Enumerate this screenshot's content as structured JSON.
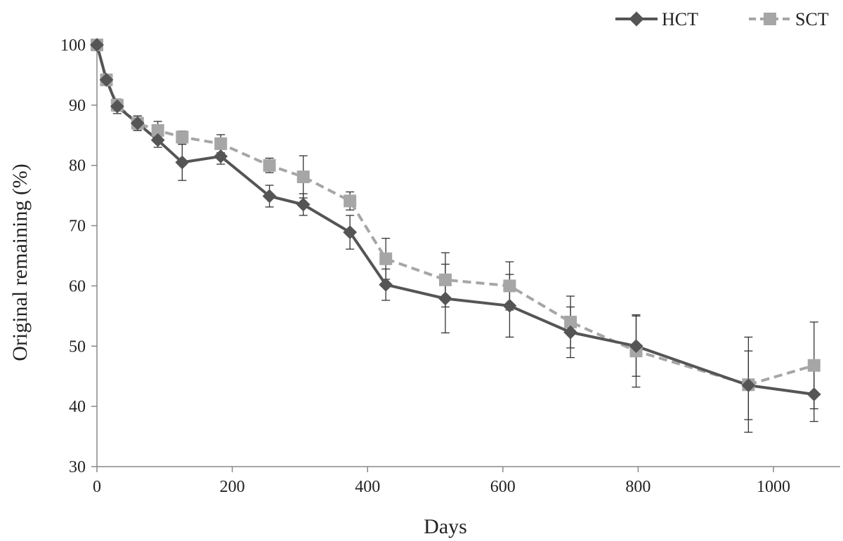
{
  "chart_data": {
    "type": "line",
    "xlabel": "Days",
    "ylabel": "Original remaining (%)",
    "xlim": [
      0,
      1100
    ],
    "ylim": [
      30,
      100
    ],
    "x_ticks": [
      0,
      200,
      400,
      600,
      800,
      1000
    ],
    "y_ticks": [
      30,
      40,
      50,
      60,
      70,
      80,
      90,
      100
    ],
    "grid": false,
    "legend_position": "top-right",
    "series": [
      {
        "name": "HCT",
        "color": "#555555",
        "line_style": "solid",
        "marker": "diamond",
        "x": [
          0,
          14,
          30,
          60,
          90,
          126,
          183,
          255,
          305,
          374,
          427,
          515,
          610,
          700,
          797,
          963,
          1060
        ],
        "y": [
          100,
          94.2,
          89.8,
          87.0,
          84.2,
          80.5,
          81.5,
          74.9,
          73.5,
          68.9,
          60.2,
          57.9,
          56.7,
          52.3,
          50.0,
          43.5,
          42.0
        ],
        "err": [
          0,
          0.8,
          1.2,
          1.2,
          1.2,
          3.0,
          1.3,
          1.8,
          1.8,
          2.8,
          2.6,
          5.7,
          5.2,
          4.2,
          5.0,
          5.7,
          4.5
        ]
      },
      {
        "name": "SCT",
        "color": "#a6a6a6",
        "line_style": "dashed",
        "marker": "square",
        "x": [
          0,
          14,
          30,
          60,
          90,
          126,
          183,
          255,
          305,
          374,
          427,
          515,
          610,
          700,
          797,
          963,
          1060
        ],
        "y": [
          100,
          94.2,
          90.0,
          87.0,
          85.8,
          84.7,
          83.6,
          80.0,
          78.1,
          74.1,
          64.5,
          61.0,
          60.0,
          54.0,
          49.2,
          43.6,
          46.8
        ],
        "err": [
          0,
          0.8,
          1.0,
          1.2,
          1.5,
          1.0,
          1.5,
          1.2,
          3.5,
          1.5,
          3.4,
          4.5,
          4.0,
          4.3,
          6.0,
          7.9,
          7.2
        ]
      }
    ]
  }
}
